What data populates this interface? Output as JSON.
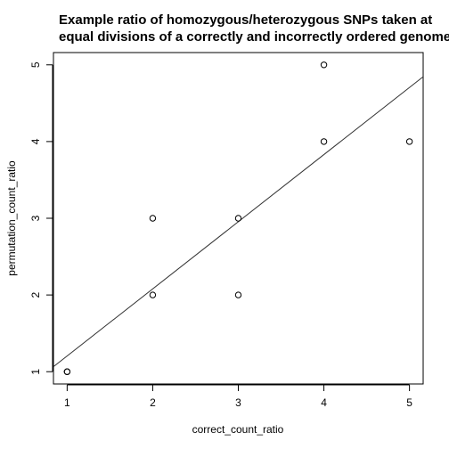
{
  "chart_data": {
    "type": "scatter",
    "title": "Example ratio of homozygous/heterozygous SNPs taken at equal divisions of a correctly and incorrectly ordered genome",
    "title_lines": [
      "Example ratio of homozygous/heterozygous SNPs taken at",
      "equal divisions of a correctly and incorrectly ordered genome"
    ],
    "xlabel": "correct_count_ratio",
    "ylabel": "permutation_count_ratio",
    "xlim": [
      0.84,
      5.16
    ],
    "ylim": [
      0.84,
      5.16
    ],
    "x_ticks": [
      1,
      2,
      3,
      4,
      5
    ],
    "y_ticks": [
      1,
      2,
      3,
      4,
      5
    ],
    "x_tick_labels": [
      "1",
      "2",
      "3",
      "4",
      "5"
    ],
    "y_tick_labels": [
      "1",
      "2",
      "3",
      "4",
      "5"
    ],
    "points": [
      {
        "x": 1,
        "y": 1
      },
      {
        "x": 1,
        "y": 1
      },
      {
        "x": 2,
        "y": 2
      },
      {
        "x": 2,
        "y": 3
      },
      {
        "x": 3,
        "y": 2
      },
      {
        "x": 3,
        "y": 3
      },
      {
        "x": 4,
        "y": 4
      },
      {
        "x": 4,
        "y": 5
      },
      {
        "x": 5,
        "y": 4
      }
    ],
    "regression_line": {
      "intercept": 0.33,
      "slope": 0.875
    },
    "grid": false,
    "marker": "open-circle",
    "colors": {
      "points": "#000000",
      "line": "#333333",
      "axis": "#000000"
    }
  }
}
